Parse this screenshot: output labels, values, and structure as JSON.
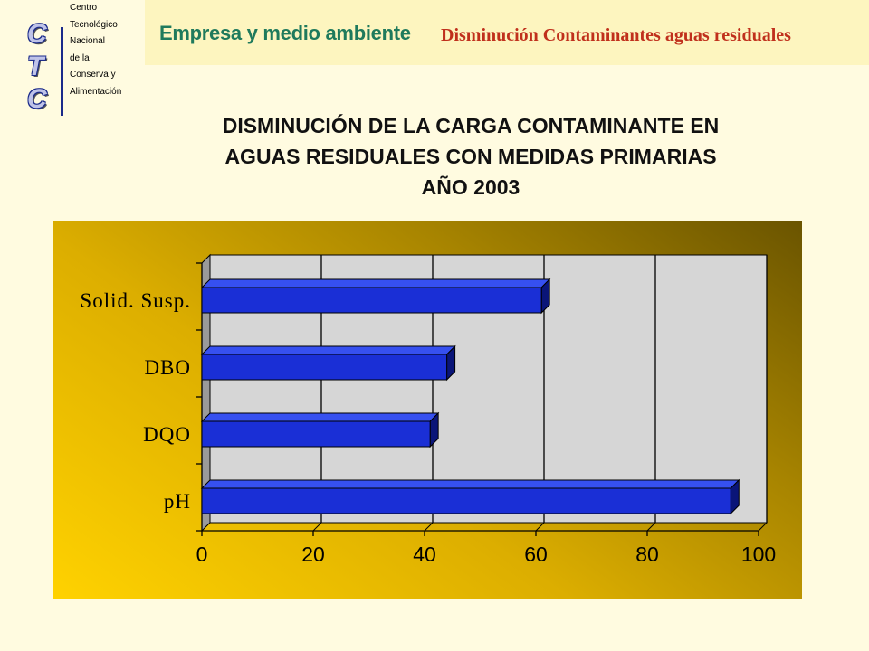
{
  "header": {
    "logo_letters": [
      "C",
      "T",
      "C"
    ],
    "org_lines": [
      "Centro",
      "Tecnológico",
      "Nacional",
      "de la",
      "Conserva y",
      "Alimentación"
    ],
    "section_title": "Empresa y medio ambiente",
    "topic_title": "Disminución Contaminantes aguas residuales"
  },
  "main_title_lines": [
    "DISMINUCIÓN DE LA CARGA CONTAMINANTE EN",
    "AGUAS RESIDUALES CON MEDIDAS PRIMARIAS",
    "AÑO 2003"
  ],
  "colors": {
    "bar": "#1a2fd6",
    "bar_top": "#3650f0",
    "bar_side": "#0a1578",
    "plot_bg": "#d6d6d6"
  },
  "chart_data": {
    "type": "bar",
    "orientation": "horizontal",
    "categories": [
      "Solid. Susp.",
      "DBO",
      "DQO",
      "pH"
    ],
    "values": [
      61,
      44,
      41,
      95
    ],
    "x_ticks": [
      "0",
      "20",
      "40",
      "60",
      "80",
      "100"
    ],
    "xlim": [
      0,
      100
    ],
    "grid": true,
    "title": "",
    "xlabel": "",
    "ylabel": ""
  }
}
